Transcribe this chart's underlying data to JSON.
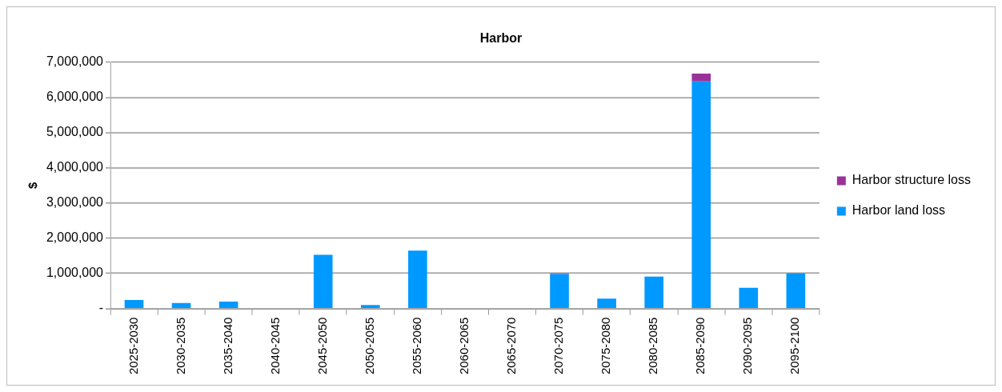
{
  "chart_data": {
    "type": "bar",
    "title": "Harbor",
    "ylabel": "$",
    "stacked": true,
    "legend": "right",
    "grid": "y",
    "categories": [
      "2025-2030",
      "2030-2035",
      "2035-2040",
      "2040-2045",
      "2045-2050",
      "2050-2055",
      "2055-2060",
      "2060-2065",
      "2065-2070",
      "2070-2075",
      "2075-2080",
      "2080-2085",
      "2085-2090",
      "2090-2095",
      "2095-2100"
    ],
    "series": [
      {
        "name": "Harbor land loss",
        "color": "#0099ff",
        "values": [
          240000,
          160000,
          200000,
          0,
          1530000,
          100000,
          1650000,
          0,
          0,
          980000,
          280000,
          910000,
          6460000,
          590000,
          1000000
        ]
      },
      {
        "name": "Harbor structure loss",
        "color": "#993399",
        "values": [
          0,
          0,
          0,
          0,
          0,
          0,
          0,
          0,
          0,
          20000,
          0,
          0,
          220000,
          0,
          0
        ]
      }
    ],
    "ylim": [
      0,
      7000000
    ],
    "yticks": [
      {
        "value": 0,
        "label": "-"
      },
      {
        "value": 1000000,
        "label": "1,000,000"
      },
      {
        "value": 2000000,
        "label": "2,000,000"
      },
      {
        "value": 3000000,
        "label": "3,000,000"
      },
      {
        "value": 4000000,
        "label": "4,000,000"
      },
      {
        "value": 5000000,
        "label": "5,000,000"
      },
      {
        "value": 6000000,
        "label": "6,000,000"
      },
      {
        "value": 7000000,
        "label": "7,000,000"
      }
    ]
  }
}
